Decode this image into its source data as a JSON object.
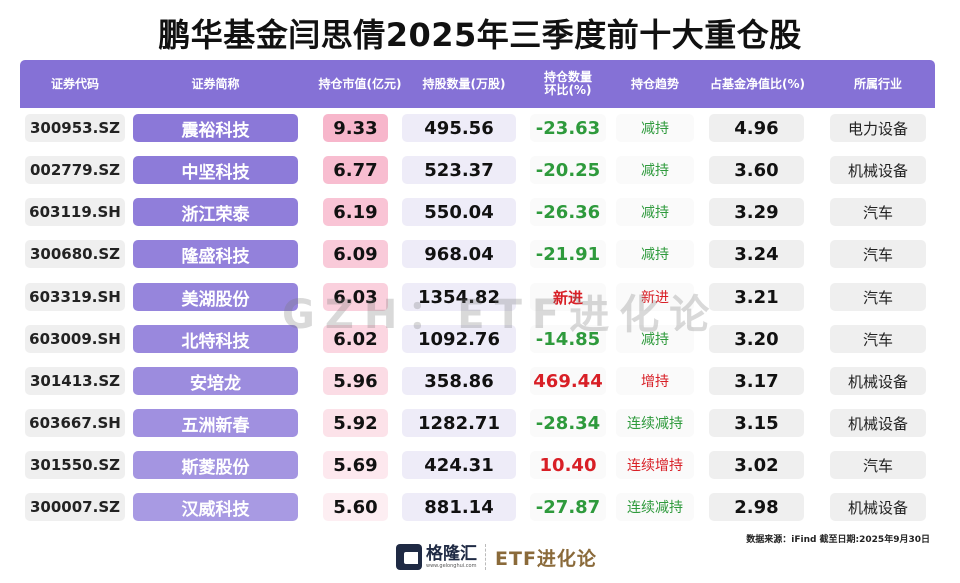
{
  "title": "鹏华基金闫思倩2025年三季度前十大重仓股",
  "columns": [
    "证券代码",
    "证券简称",
    "持仓市值(亿元)",
    "持股数量(万股)",
    "持仓数量环比(%)",
    "持仓趋势",
    "占基金净值比(%)",
    "所属行业"
  ],
  "columns_display": {
    "change_line1": "持仓数量",
    "change_line2": "环比(%)"
  },
  "rows": [
    {
      "code": "300953.SZ",
      "name": "震裕科技",
      "market_value": "9.33",
      "shares": "495.56",
      "change": "-23.63",
      "trend": "减持",
      "nav_pct": "4.96",
      "industry": "电力设备",
      "dir": "neg",
      "mv_bg": "#f7b6cb",
      "name_bg": "#8b78d8"
    },
    {
      "code": "002779.SZ",
      "name": "中坚科技",
      "market_value": "6.77",
      "shares": "523.37",
      "change": "-20.25",
      "trend": "减持",
      "nav_pct": "3.60",
      "industry": "机械设备",
      "dir": "neg",
      "mv_bg": "#f8bdd0",
      "name_bg": "#8d7bd9"
    },
    {
      "code": "603119.SH",
      "name": "浙江荣泰",
      "market_value": "6.19",
      "shares": "550.04",
      "change": "-26.36",
      "trend": "减持",
      "nav_pct": "3.29",
      "industry": "汽车",
      "dir": "neg",
      "mv_bg": "#f9c4d5",
      "name_bg": "#907eda"
    },
    {
      "code": "300680.SZ",
      "name": "隆盛科技",
      "market_value": "6.09",
      "shares": "968.04",
      "change": "-21.91",
      "trend": "减持",
      "nav_pct": "3.24",
      "industry": "汽车",
      "dir": "neg",
      "mv_bg": "#f9cad9",
      "name_bg": "#9381db"
    },
    {
      "code": "603319.SH",
      "name": "美湖股份",
      "market_value": "6.03",
      "shares": "1354.82",
      "change": "新进",
      "trend": "新进",
      "nav_pct": "3.21",
      "industry": "汽车",
      "dir": "new",
      "mv_bg": "#fad0dd",
      "name_bg": "#9685dc"
    },
    {
      "code": "603009.SH",
      "name": "北特科技",
      "market_value": "6.02",
      "shares": "1092.76",
      "change": "-14.85",
      "trend": "减持",
      "nav_pct": "3.20",
      "industry": "汽车",
      "dir": "neg",
      "mv_bg": "#fbd6e1",
      "name_bg": "#9988dd"
    },
    {
      "code": "301413.SZ",
      "name": "安培龙",
      "market_value": "5.96",
      "shares": "358.86",
      "change": "469.44",
      "trend": "增持",
      "nav_pct": "3.17",
      "industry": "机械设备",
      "dir": "pos",
      "mv_bg": "#fbdce5",
      "name_bg": "#9c8cde"
    },
    {
      "code": "603667.SH",
      "name": "五洲新春",
      "market_value": "5.92",
      "shares": "1282.71",
      "change": "-28.34",
      "trend": "连续减持",
      "nav_pct": "3.15",
      "industry": "机械设备",
      "dir": "neg",
      "mv_bg": "#fce2e9",
      "name_bg": "#a090e0"
    },
    {
      "code": "301550.SZ",
      "name": "斯菱股份",
      "market_value": "5.69",
      "shares": "424.31",
      "change": "10.40",
      "trend": "连续增持",
      "nav_pct": "3.02",
      "industry": "汽车",
      "dir": "pos",
      "mv_bg": "#fde8ee",
      "name_bg": "#a495e1"
    },
    {
      "code": "300007.SZ",
      "name": "汉威科技",
      "market_value": "5.60",
      "shares": "881.14",
      "change": "-27.87",
      "trend": "连续减持",
      "nav_pct": "2.98",
      "industry": "机械设备",
      "dir": "neg",
      "mv_bg": "#fdeef2",
      "name_bg": "#a89ae3"
    }
  ],
  "watermark": "GZH：ETF进化论",
  "source": "数据来源：iFind 截至日期:2025年9月30日",
  "logo": {
    "brand": "格隆汇",
    "url": "www.gelonghui.com",
    "sub_brand": "ETF进化论"
  },
  "colors": {
    "header_bg": "#8571d6",
    "negative": "#2e9a3c",
    "positive": "#d81f26",
    "market_value_bg": "#f7b6cb",
    "shares_bg": "#eeecf8"
  },
  "chart_data": {
    "type": "table",
    "title": "鹏华基金闫思倩2025年三季度前十大重仓股",
    "columns": [
      "证券代码",
      "证券简称",
      "持仓市值(亿元)",
      "持股数量(万股)",
      "持仓数量环比(%)",
      "持仓趋势",
      "占基金净值比(%)",
      "所属行业"
    ],
    "rows": [
      [
        "300953.SZ",
        "震裕科技",
        9.33,
        495.56,
        -23.63,
        "减持",
        4.96,
        "电力设备"
      ],
      [
        "002779.SZ",
        "中坚科技",
        6.77,
        523.37,
        -20.25,
        "减持",
        3.6,
        "机械设备"
      ],
      [
        "603119.SH",
        "浙江荣泰",
        6.19,
        550.04,
        -26.36,
        "减持",
        3.29,
        "汽车"
      ],
      [
        "300680.SZ",
        "隆盛科技",
        6.09,
        968.04,
        -21.91,
        "减持",
        3.24,
        "汽车"
      ],
      [
        "603319.SH",
        "美湖股份",
        6.03,
        1354.82,
        "新进",
        "新进",
        3.21,
        "汽车"
      ],
      [
        "603009.SH",
        "北特科技",
        6.02,
        1092.76,
        -14.85,
        "减持",
        3.2,
        "汽车"
      ],
      [
        "301413.SZ",
        "安培龙",
        5.96,
        358.86,
        469.44,
        "增持",
        3.17,
        "机械设备"
      ],
      [
        "603667.SH",
        "五洲新春",
        5.92,
        1282.71,
        -28.34,
        "连续减持",
        3.15,
        "机械设备"
      ],
      [
        "301550.SZ",
        "斯菱股份",
        5.69,
        424.31,
        10.4,
        "连续增持",
        3.02,
        "汽车"
      ],
      [
        "300007.SZ",
        "汉威科技",
        5.6,
        881.14,
        -27.87,
        "连续减持",
        2.98,
        "机械设备"
      ]
    ],
    "source": "数据来源：iFind 截至日期:2025年9月30日"
  }
}
